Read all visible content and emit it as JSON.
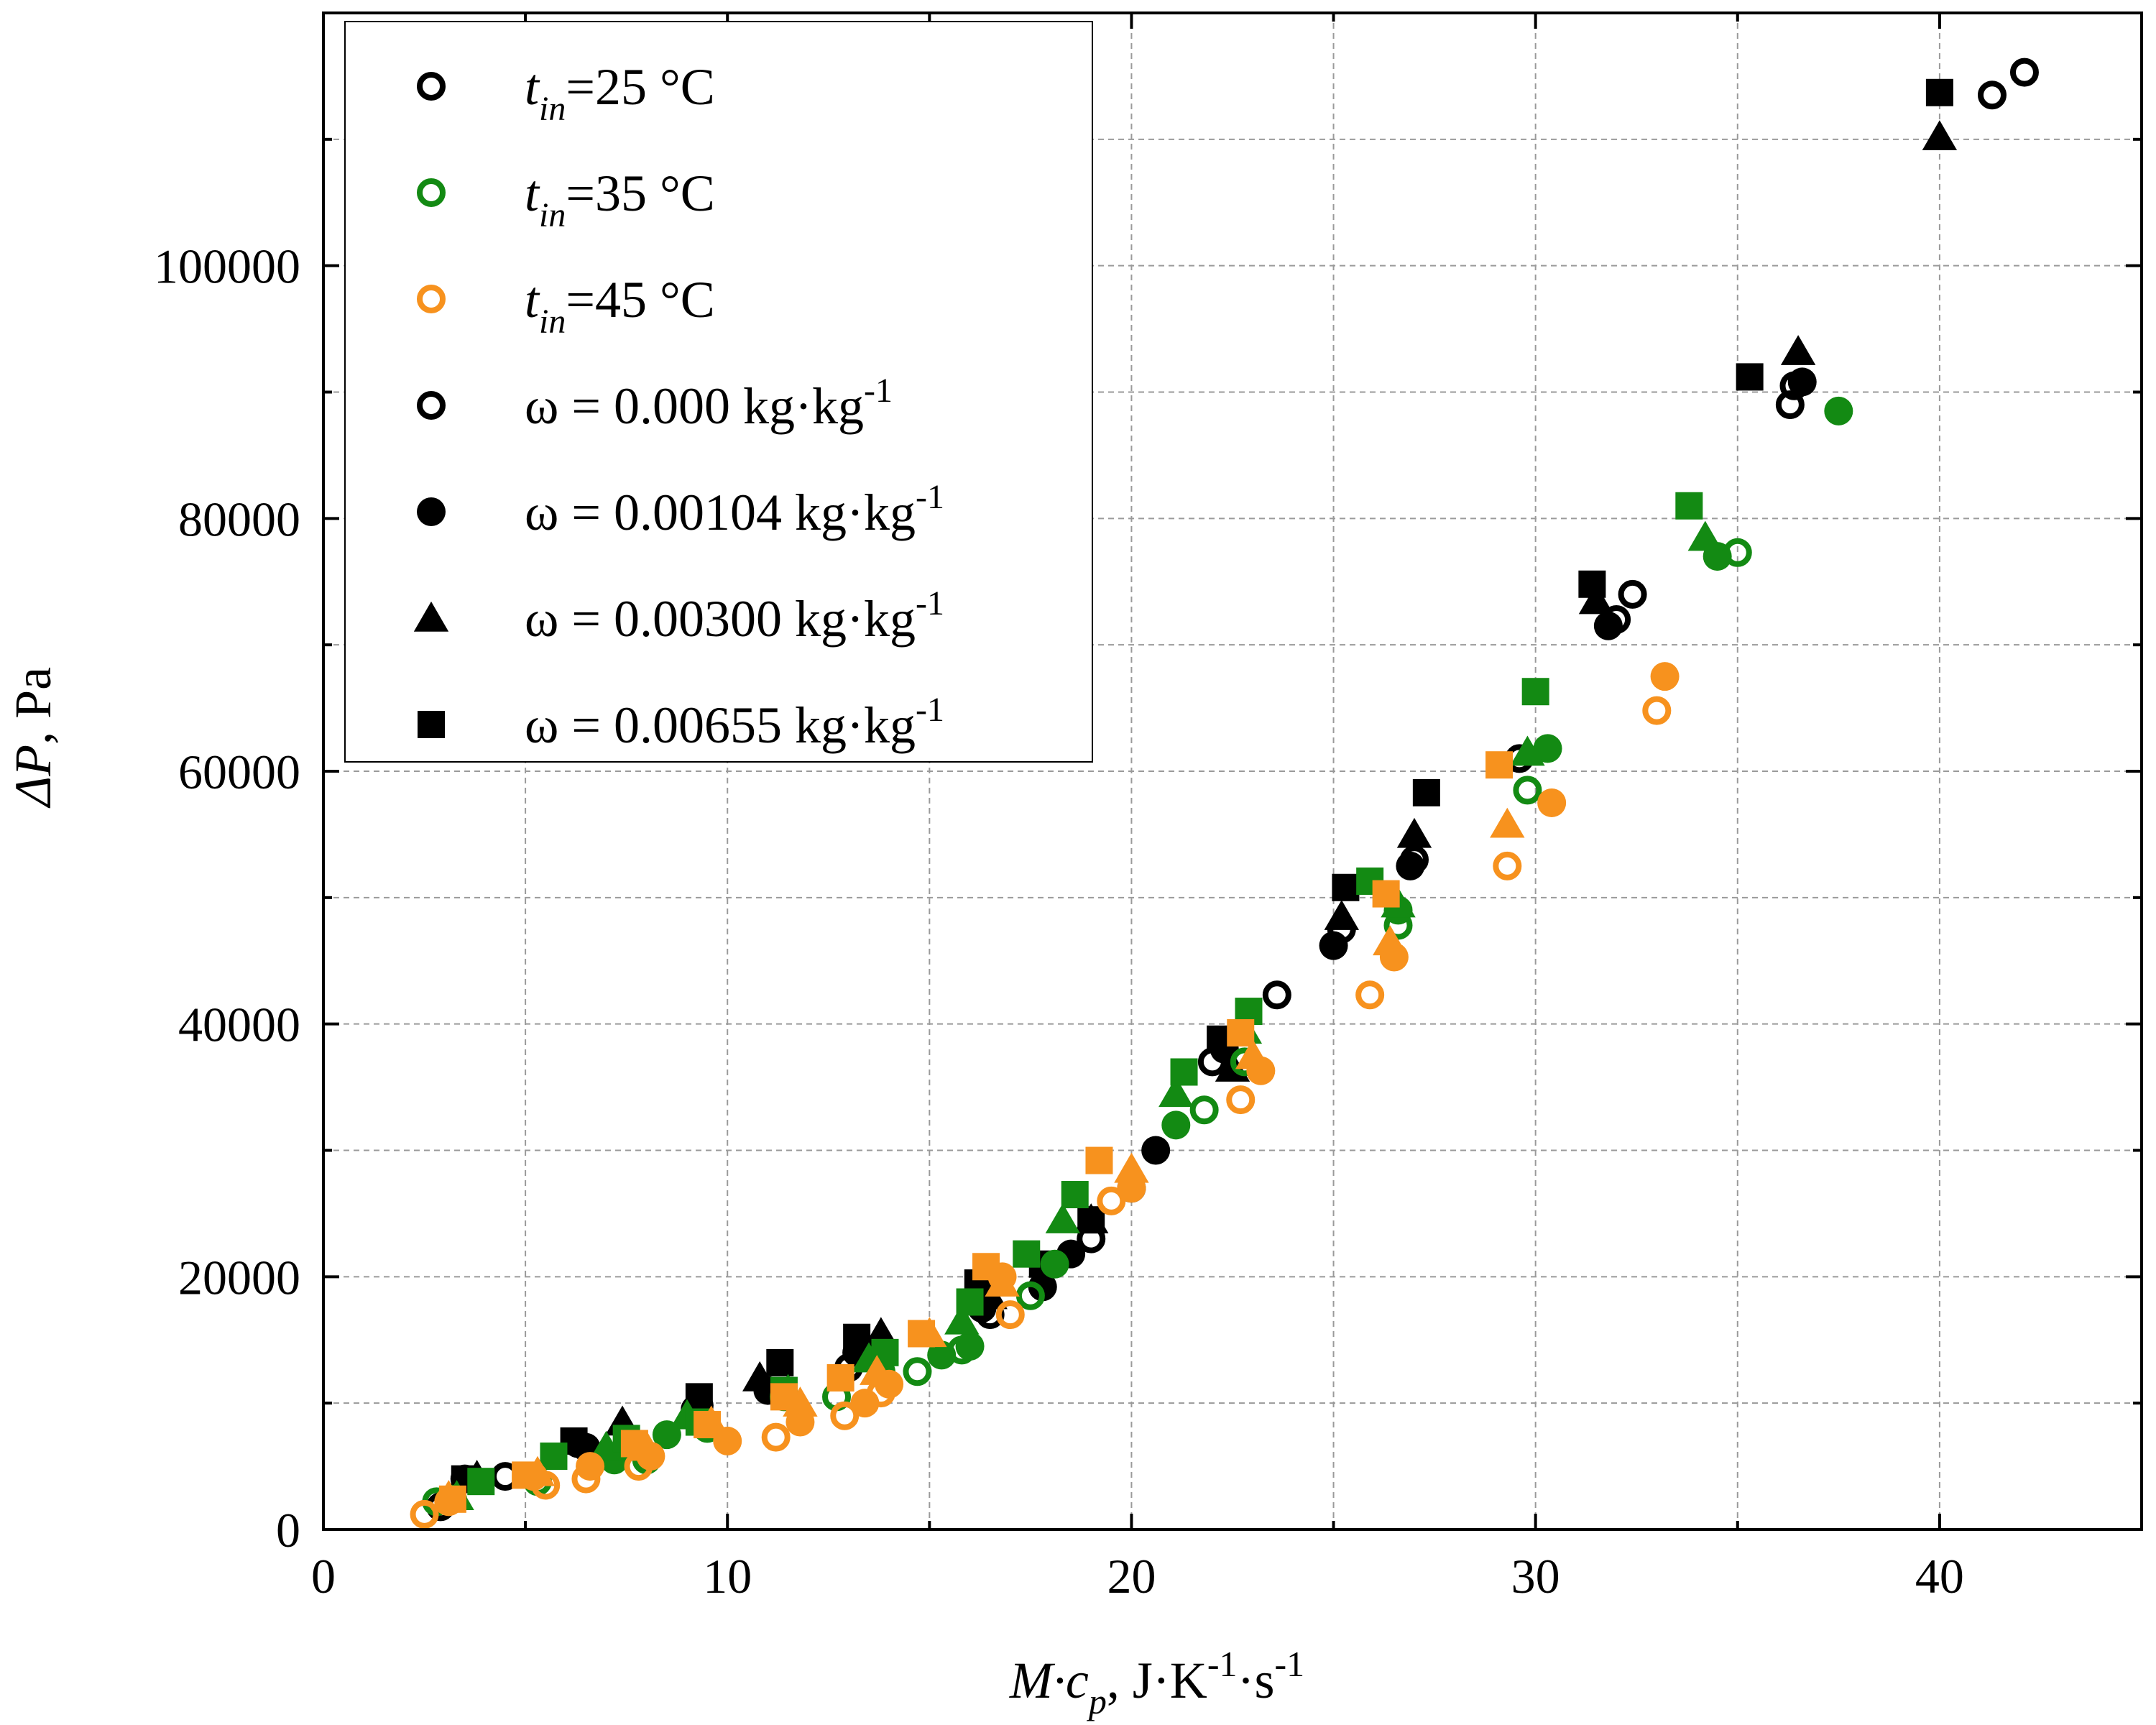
{
  "chart_data": {
    "type": "scatter",
    "xlabel": {
      "main": "M·c",
      "sub": "p",
      "rest": ", J·K",
      "sup1": "-1",
      "rest2": "·s",
      "sup2": "-1"
    },
    "ylabel": {
      "main": "ΔP",
      "rest": ", Pa"
    },
    "xlim": [
      0,
      45
    ],
    "ylim": [
      0,
      120000
    ],
    "xticks": [
      0,
      10,
      20,
      30,
      40
    ],
    "xtick_labels": [
      "0",
      "10",
      "20",
      "30",
      "40"
    ],
    "yticks": [
      0,
      20000,
      40000,
      60000,
      80000,
      100000
    ],
    "ytick_labels": [
      "0",
      "20000",
      "40000",
      "60000",
      "80000",
      "100000"
    ],
    "grid": true,
    "legend_position": "top-left",
    "legend": [
      {
        "label_italic": "t",
        "label_sub": "in",
        "label_rest": "=25 °C",
        "label_sup": "",
        "marker": "open-circle",
        "color": "#000000"
      },
      {
        "label_italic": "t",
        "label_sub": "in",
        "label_rest": "=35 °C",
        "label_sup": "",
        "marker": "open-circle",
        "color": "#138a13"
      },
      {
        "label_italic": "t",
        "label_sub": "in",
        "label_rest": "=45 °C",
        "label_sup": "",
        "marker": "open-circle",
        "color": "#f7921e"
      },
      {
        "label_italic": "",
        "label_sub": "",
        "label_rest": "ω = 0.000 kg·kg",
        "label_sup": "-1",
        "marker": "open-circle",
        "color": "#000000"
      },
      {
        "label_italic": "",
        "label_sub": "",
        "label_rest": "ω = 0.00104 kg·kg",
        "label_sup": "-1",
        "marker": "filled-circle",
        "color": "#000000"
      },
      {
        "label_italic": "",
        "label_sub": "",
        "label_rest": "ω = 0.00300 kg·kg",
        "label_sup": "-1",
        "marker": "triangle",
        "color": "#000000"
      },
      {
        "label_italic": "",
        "label_sub": "",
        "label_rest": "ω = 0.00655 kg·kg",
        "label_sup": "-1",
        "marker": "square",
        "color": "#000000"
      }
    ],
    "colors": {
      "t25": "#000000",
      "t35": "#138a13",
      "t45": "#f7921e"
    },
    "series": [
      {
        "name": "t25 ω=0.000",
        "color": "#000000",
        "marker": "open-circle",
        "x": [
          2.9,
          4.5,
          6.3,
          9.3,
          13.0,
          16.5,
          19.0,
          20.0,
          22.0,
          23.6,
          25.2,
          27.0,
          29.6,
          32.0,
          32.4,
          36.3,
          36.4,
          41.3,
          42.1
        ],
        "y": [
          1800,
          4200,
          6800,
          9800,
          12800,
          17000,
          23000,
          27000,
          37000,
          42300,
          47500,
          53000,
          61000,
          72000,
          74000,
          89000,
          90500,
          113500,
          115300
        ]
      },
      {
        "name": "t25 ω=0.00104",
        "color": "#000000",
        "marker": "filled-circle",
        "x": [
          3.5,
          6.5,
          9.2,
          11.0,
          13.2,
          16.3,
          17.8,
          18.5,
          20.6,
          22.3,
          25.0,
          26.9,
          31.8,
          36.6
        ],
        "y": [
          4000,
          6500,
          9500,
          11000,
          14000,
          17500,
          19200,
          21800,
          30000,
          38000,
          46200,
          52500,
          71500,
          90800
        ]
      },
      {
        "name": "t25 ω=0.00300",
        "color": "#000000",
        "marker": "triangle",
        "x": [
          3.8,
          7.4,
          10.8,
          13.8,
          16.5,
          19.0,
          22.5,
          25.2,
          27.0,
          31.5,
          36.5,
          40.0
        ],
        "y": [
          4200,
          8500,
          12000,
          15500,
          18500,
          24500,
          36500,
          48500,
          55000,
          73500,
          93200,
          110200
        ]
      },
      {
        "name": "t25 ω=0.00655",
        "color": "#000000",
        "marker": "square",
        "x": [
          3.5,
          6.2,
          9.3,
          11.3,
          13.2,
          16.2,
          17.8,
          19.0,
          22.2,
          25.3,
          27.3,
          31.4,
          35.3,
          40.0
        ],
        "y": [
          4000,
          7000,
          10500,
          13200,
          15200,
          19500,
          21000,
          24500,
          38800,
          50800,
          58300,
          74800,
          91200,
          113700
        ]
      },
      {
        "name": "t35 ω=0.000",
        "color": "#138a13",
        "marker": "open-circle",
        "x": [
          2.8,
          5.3,
          8.0,
          9.5,
          12.7,
          14.7,
          15.8,
          17.5,
          21.8,
          22.8,
          26.6,
          29.8,
          35.0
        ],
        "y": [
          2200,
          3800,
          5500,
          8000,
          10500,
          12500,
          14200,
          18500,
          33200,
          37000,
          47800,
          58500,
          77300
        ]
      },
      {
        "name": "t35 ω=0.00104",
        "color": "#138a13",
        "marker": "filled-circle",
        "x": [
          3.2,
          7.2,
          8.5,
          11.4,
          13.8,
          15.3,
          16.0,
          18.1,
          21.1,
          26.6,
          30.3,
          34.5,
          37.5
        ],
        "y": [
          2400,
          5500,
          7500,
          10500,
          12500,
          13800,
          14500,
          21000,
          32000,
          49000,
          61800,
          77000,
          88500
        ]
      },
      {
        "name": "t35 ω=0.00300",
        "color": "#138a13",
        "marker": "triangle",
        "x": [
          3.3,
          7.0,
          9.0,
          11.5,
          13.5,
          15.8,
          18.3,
          21.1,
          22.8,
          26.6,
          29.8,
          34.2
        ],
        "y": [
          2600,
          6500,
          9000,
          11000,
          13500,
          16500,
          24500,
          34500,
          39500,
          49500,
          61500,
          78500
        ]
      },
      {
        "name": "t35 ω=0.00655",
        "color": "#138a13",
        "marker": "square",
        "x": [
          3.9,
          5.7,
          7.5,
          9.3,
          11.4,
          13.9,
          16.0,
          17.4,
          18.6,
          21.3,
          22.9,
          25.9,
          30.0,
          33.8
        ],
        "y": [
          3800,
          5800,
          7200,
          8500,
          11000,
          14000,
          18000,
          21800,
          26500,
          36200,
          41000,
          51300,
          66300,
          81000
        ]
      },
      {
        "name": "t45 ω=0.000",
        "color": "#f7921e",
        "marker": "open-circle",
        "x": [
          2.5,
          5.5,
          6.5,
          7.8,
          11.2,
          12.9,
          13.8,
          17.0,
          19.5,
          22.7,
          25.9,
          29.3,
          33.0
        ],
        "y": [
          1200,
          3500,
          4000,
          5000,
          7300,
          9000,
          10800,
          17000,
          26000,
          34000,
          42300,
          52500,
          64800
        ]
      },
      {
        "name": "t45 ω=0.00104",
        "color": "#f7921e",
        "marker": "filled-circle",
        "x": [
          3.1,
          5.2,
          6.6,
          8.1,
          10.0,
          11.8,
          13.4,
          14.0,
          16.8,
          20.0,
          23.2,
          26.5,
          30.4,
          33.2
        ],
        "y": [
          2200,
          4200,
          5000,
          5800,
          7000,
          8500,
          10000,
          11500,
          20000,
          27000,
          36300,
          45300,
          57500,
          67500
        ]
      },
      {
        "name": "t45 ω=0.00300",
        "color": "#f7921e",
        "marker": "triangle",
        "x": [
          3.1,
          5.3,
          8.0,
          9.6,
          11.8,
          13.7,
          15.0,
          16.8,
          20.0,
          23.0,
          26.4,
          29.3
        ],
        "y": [
          2600,
          4500,
          6500,
          8500,
          10000,
          12500,
          15500,
          19500,
          28500,
          37500,
          46500,
          55800
        ]
      },
      {
        "name": "t45 ω=0.00655",
        "color": "#f7921e",
        "marker": "square",
        "x": [
          3.2,
          5.0,
          7.7,
          9.5,
          11.4,
          12.8,
          14.8,
          16.4,
          19.2,
          22.7,
          26.3,
          29.1
        ],
        "y": [
          2400,
          4300,
          6800,
          8300,
          10500,
          12000,
          15500,
          20800,
          29200,
          39300,
          50300,
          60500
        ]
      }
    ]
  }
}
